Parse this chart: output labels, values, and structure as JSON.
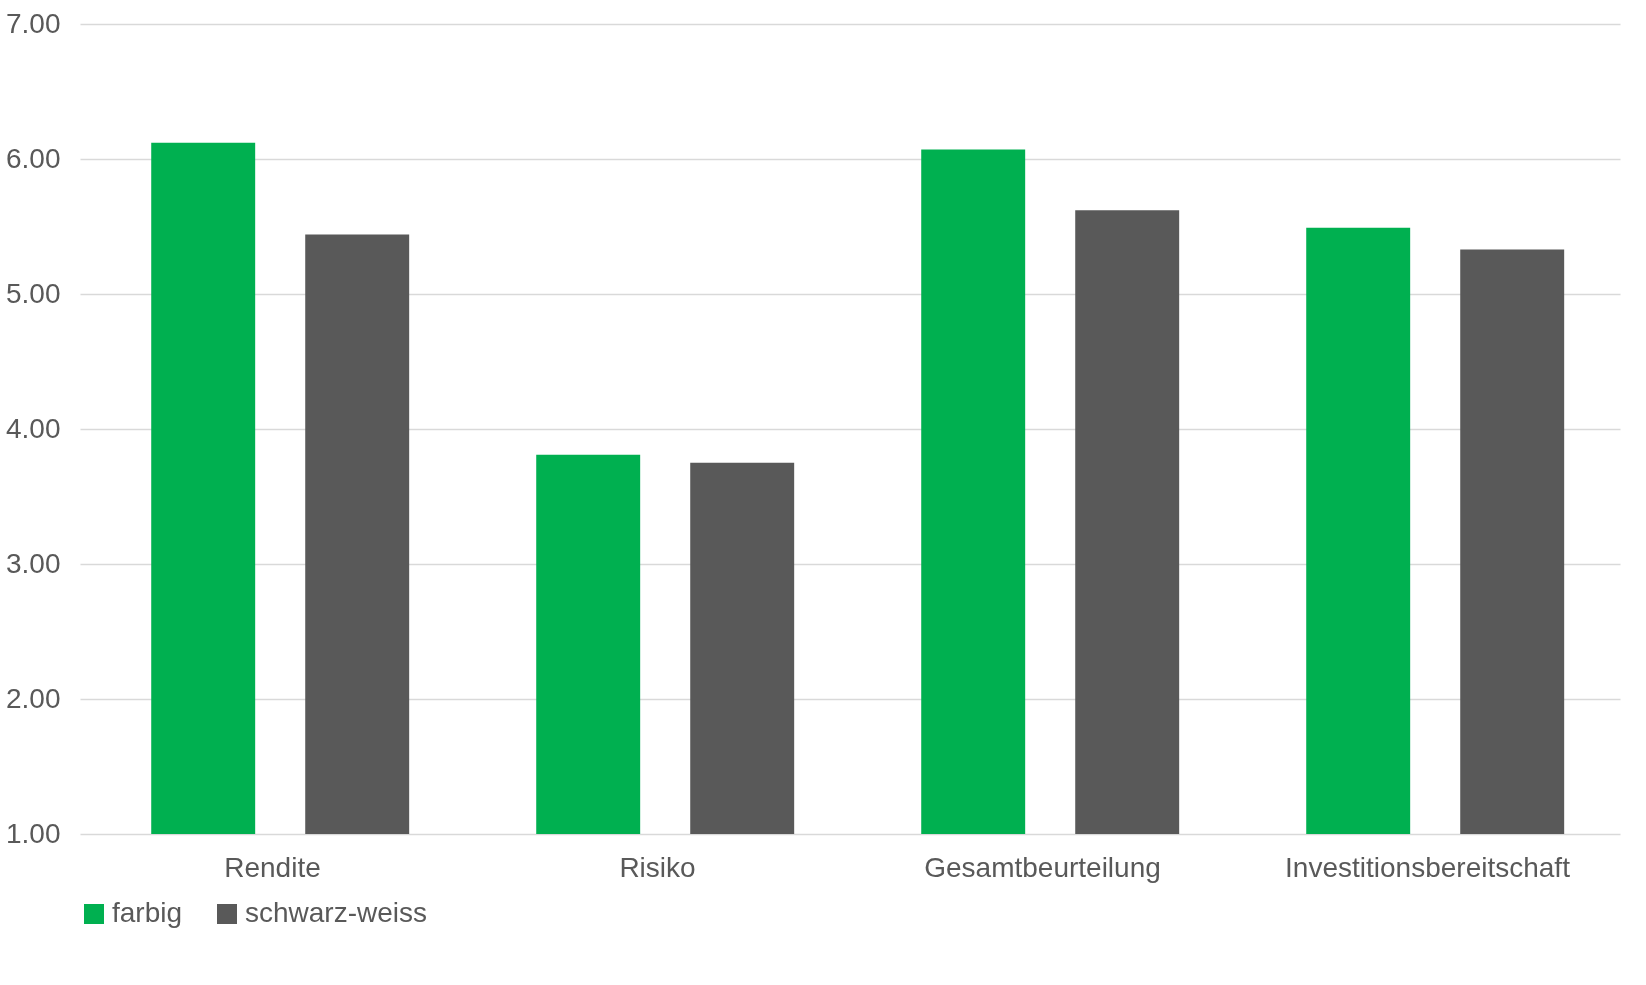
{
  "chart_data": {
    "type": "bar",
    "categories": [
      "Rendite",
      "Risiko",
      "Gesamtbeurteilung",
      "Investitionsbereitschaft"
    ],
    "series": [
      {
        "name": "farbig",
        "color": "#00b050",
        "values": [
          6.12,
          3.81,
          6.07,
          5.49
        ]
      },
      {
        "name": "schwarz-weiss",
        "color": "#595959",
        "values": [
          5.44,
          3.75,
          5.62,
          5.33
        ]
      }
    ],
    "ylim": [
      1,
      7
    ],
    "yticks": [
      {
        "value": 1,
        "label": "1.00"
      },
      {
        "value": 2,
        "label": "2.00"
      },
      {
        "value": 3,
        "label": "3.00"
      },
      {
        "value": 4,
        "label": "4.00"
      },
      {
        "value": 5,
        "label": "5.00"
      },
      {
        "value": 6,
        "label": "6.00"
      },
      {
        "value": 7,
        "label": "7.00"
      }
    ],
    "grid": "y",
    "legend": "bottom"
  }
}
